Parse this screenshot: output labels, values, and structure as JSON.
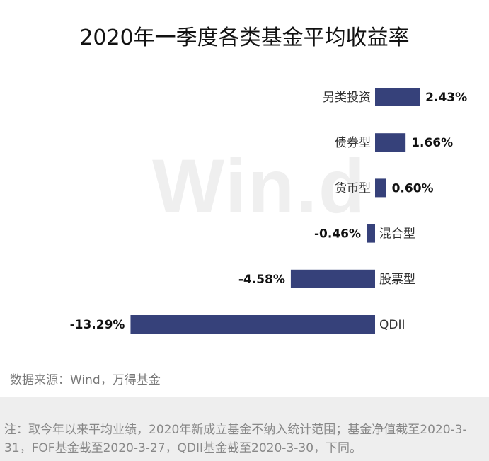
{
  "watermark": "Win.d",
  "source": "数据来源：Wind，万得基金",
  "note": "注：取今年以来平均业绩，2020年新成立基金不纳入统计范围；基金净值截至2020-3-31，FOF基金截至2020-3-27，QDII基金截至2020-3-30，下同。",
  "colors": {
    "bar": "#36417a",
    "label": "#333333",
    "value": "#111111"
  },
  "chart_data": {
    "type": "bar",
    "orientation": "horizontal",
    "title": "2020年一季度各类基金平均收益率",
    "categories": [
      "另类投资",
      "债券型",
      "货币型",
      "混合型",
      "股票型",
      "QDII"
    ],
    "values": [
      2.43,
      1.66,
      0.6,
      -0.46,
      -4.58,
      -13.29
    ],
    "value_labels": [
      "2.43%",
      "1.66%",
      "0.60%",
      "-0.46%",
      "-4.58%",
      "-13.29%"
    ],
    "unit": "%",
    "xlabel": "",
    "ylabel": "",
    "grid": false,
    "legend": "none"
  }
}
